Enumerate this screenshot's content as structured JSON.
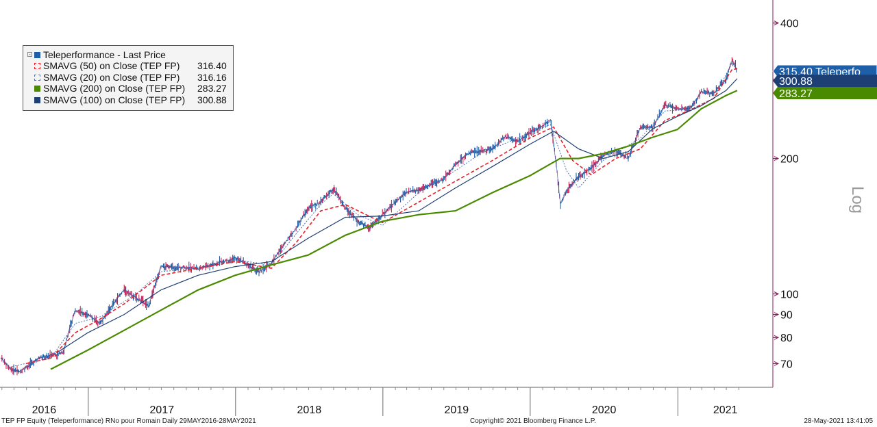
{
  "chart_data": {
    "type": "line",
    "security": "Teleperformance - Last Price",
    "y_scale": "log",
    "y_scale_label": "Log",
    "ylim": [
      62,
      450
    ],
    "y_ticks": [
      70,
      80,
      90,
      100,
      200,
      400
    ],
    "x_range": [
      "2016-05-29",
      "2021-05-28"
    ],
    "x_ticks": [
      "2016",
      "2017",
      "2018",
      "2019",
      "2020",
      "2021"
    ],
    "grid": false,
    "legend_position": "top-left",
    "colors": {
      "price": "#1f5fa8",
      "price_down": "#cc2255",
      "sma50": "#e8202a",
      "sma20": "#4a74b8",
      "sma200": "#4a8a00",
      "sma100": "#1e3f73",
      "axis": "#8a1a5a"
    },
    "legend": [
      {
        "key": "price",
        "label": "Teleperformance - Last Price",
        "value": ""
      },
      {
        "key": "sma50",
        "label": "SMAVG (50)  on Close (TEP FP)",
        "value": "316.40"
      },
      {
        "key": "sma20",
        "label": "SMAVG (20)  on Close (TEP FP)",
        "value": "316.16"
      },
      {
        "key": "sma200",
        "label": "SMAVG (200)  on Close (TEP FP)",
        "value": "283.27"
      },
      {
        "key": "sma100",
        "label": "SMAVG (100)  on Close (TEP FP)",
        "value": "300.88"
      }
    ],
    "price_series": {
      "name": "Teleperformance - Last Price",
      "x": [
        "2016-05-30",
        "2016-06-24",
        "2016-07-15",
        "2016-08-31",
        "2016-10-31",
        "2016-11-30",
        "2016-12-31",
        "2017-01-31",
        "2017-02-28",
        "2017-03-31",
        "2017-05-31",
        "2017-06-30",
        "2017-09-30",
        "2017-10-31",
        "2017-12-31",
        "2018-02-28",
        "2018-03-31",
        "2018-05-31",
        "2018-06-30",
        "2018-07-31",
        "2018-08-31",
        "2018-09-30",
        "2018-10-31",
        "2018-11-30",
        "2018-12-31",
        "2019-02-28",
        "2019-03-31",
        "2019-05-31",
        "2019-06-30",
        "2019-07-31",
        "2019-09-30",
        "2019-10-31",
        "2019-11-30",
        "2019-12-31",
        "2020-01-31",
        "2020-02-20",
        "2020-03-16",
        "2020-03-31",
        "2020-04-30",
        "2020-05-31",
        "2020-06-30",
        "2020-07-31",
        "2020-08-31",
        "2020-09-30",
        "2020-10-31",
        "2020-11-30",
        "2020-12-31",
        "2021-01-31",
        "2021-02-28",
        "2021-03-31",
        "2021-04-30",
        "2021-05-15",
        "2021-05-28"
      ],
      "values": [
        72,
        68,
        67,
        72,
        74,
        92,
        90,
        86,
        94,
        102,
        94,
        115,
        114,
        116,
        120,
        112,
        117,
        140,
        155,
        160,
        171,
        155,
        145,
        140,
        150,
        168,
        170,
        180,
        194,
        205,
        210,
        224,
        218,
        228,
        236,
        243,
        158,
        170,
        182,
        190,
        203,
        208,
        200,
        235,
        234,
        263,
        258,
        258,
        281,
        279,
        300,
        330,
        315.4
      ]
    },
    "series": [
      {
        "name": "SMAVG (20)  on Close (TEP FP)",
        "x": [
          "2016-06-27",
          "2016-09-30",
          "2016-11-30",
          "2017-01-31",
          "2017-04-30",
          "2017-06-30",
          "2017-10-31",
          "2017-12-31",
          "2018-03-31",
          "2018-05-31",
          "2018-07-31",
          "2018-08-31",
          "2018-10-31",
          "2018-12-31",
          "2019-03-31",
          "2019-06-30",
          "2019-08-31",
          "2019-10-31",
          "2019-12-31",
          "2020-02-20",
          "2020-03-31",
          "2020-04-30",
          "2020-06-30",
          "2020-09-30",
          "2020-11-30",
          "2021-01-31",
          "2021-03-31",
          "2021-05-15",
          "2021-05-28"
        ],
        "values": [
          69,
          72,
          86,
          89,
          100,
          112,
          115,
          119,
          116,
          136,
          158,
          167,
          150,
          142,
          168,
          188,
          205,
          216,
          228,
          238,
          188,
          172,
          198,
          222,
          255,
          257,
          272,
          326,
          316.16
        ]
      },
      {
        "name": "SMAVG (50)  on Close (TEP FP)",
        "x": [
          "2016-07-31",
          "2016-09-30",
          "2016-11-30",
          "2017-01-31",
          "2017-03-31",
          "2017-06-30",
          "2017-09-30",
          "2017-12-31",
          "2018-03-31",
          "2018-05-31",
          "2018-07-31",
          "2018-09-30",
          "2018-12-31",
          "2019-03-31",
          "2019-06-30",
          "2019-09-30",
          "2019-12-31",
          "2020-02-28",
          "2020-04-15",
          "2020-05-31",
          "2020-07-31",
          "2020-09-30",
          "2020-11-30",
          "2021-01-31",
          "2021-03-31",
          "2021-05-15",
          "2021-05-28"
        ],
        "values": [
          70,
          72,
          82,
          88,
          95,
          110,
          114,
          118,
          114,
          130,
          153,
          158,
          144,
          160,
          178,
          198,
          222,
          235,
          198,
          184,
          200,
          210,
          243,
          256,
          272,
          315,
          316.4
        ]
      },
      {
        "name": "SMAVG (100)  on Close (TEP FP)",
        "x": [
          "2016-10-15",
          "2016-12-31",
          "2017-03-31",
          "2017-06-30",
          "2017-09-30",
          "2017-12-31",
          "2018-03-31",
          "2018-06-30",
          "2018-09-30",
          "2018-12-31",
          "2019-03-31",
          "2019-06-30",
          "2019-09-30",
          "2019-12-31",
          "2020-02-28",
          "2020-04-30",
          "2020-06-30",
          "2020-08-31",
          "2020-10-31",
          "2020-12-31",
          "2021-02-28",
          "2021-04-30",
          "2021-05-28"
        ],
        "values": [
          74,
          82,
          90,
          102,
          110,
          115,
          118,
          133,
          148,
          149,
          153,
          172,
          192,
          215,
          230,
          210,
          200,
          207,
          233,
          248,
          262,
          283,
          300.88
        ]
      },
      {
        "name": "SMAVG (200)  on Close (TEP FP)",
        "x": [
          "2016-09-30",
          "2016-12-31",
          "2017-03-31",
          "2017-06-30",
          "2017-09-30",
          "2017-12-31",
          "2018-03-31",
          "2018-06-30",
          "2018-09-30",
          "2018-12-31",
          "2019-03-31",
          "2019-06-30",
          "2019-09-30",
          "2019-12-31",
          "2020-03-15",
          "2020-04-30",
          "2020-06-30",
          "2020-08-31",
          "2020-10-31",
          "2020-12-31",
          "2021-02-28",
          "2021-04-30",
          "2021-05-28"
        ],
        "values": [
          68,
          75,
          83,
          92,
          102,
          110,
          116,
          122,
          135,
          145,
          150,
          153,
          168,
          183,
          200,
          200,
          205,
          213,
          223,
          232,
          258,
          276,
          283.27
        ]
      }
    ],
    "last_value_labels": [
      {
        "text": "315.40 Teleperfo",
        "value": 315.4,
        "color": "#1f5fa8"
      },
      {
        "text": "300.88",
        "value": 300.88,
        "color": "#1e3f73"
      },
      {
        "text": "283.27",
        "value": 283.27,
        "color": "#4a8a00"
      }
    ]
  },
  "footer": {
    "left": "TEP FP Equity (Teleperformance) RNo pour Romain  Daily 29MAY2016-28MAY2021",
    "center": "Copyright© 2021 Bloomberg Finance L.P.",
    "right": "28-May-2021 13:41:05"
  }
}
